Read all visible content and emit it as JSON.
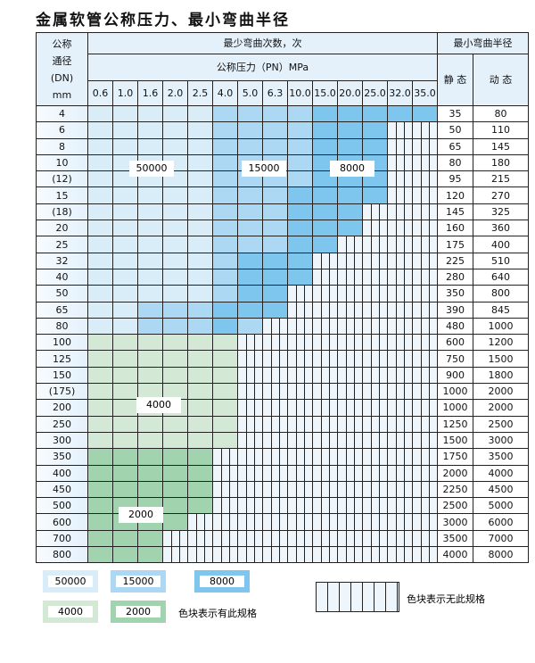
{
  "title": "金属软管公称压力、最小弯曲半径",
  "header": {
    "dn_label": [
      "公称",
      "通径",
      "(DN)",
      "mm"
    ],
    "cycles_label": "最少弯曲次数，次",
    "pressure_label": "公称压力（PN）MPa",
    "radius_label": "最小弯曲半径",
    "static_label": "静 态",
    "dynamic_label": "动 态"
  },
  "pressures": [
    "0.6",
    "1.0",
    "1.6",
    "2.0",
    "2.5",
    "4.0",
    "5.0",
    "6.3",
    "10.0",
    "15.0",
    "20.0",
    "25.0",
    "32.0",
    "35.0"
  ],
  "colors": {
    "1": "#d9edf9",
    "2": "#acd8f3",
    "3": "#7fc6ee",
    "g": "#d3e9d6",
    "G": "#a0d3ae",
    "none": "#eef6fc"
  },
  "rows": [
    {
      "dn": "4",
      "static": "35",
      "dynamic": "80",
      "cells": "11111222233333"
    },
    {
      "dn": "6",
      "static": "50",
      "dynamic": "110",
      "cells": "111112222333--"
    },
    {
      "dn": "8",
      "static": "65",
      "dynamic": "145",
      "cells": "111112222333--"
    },
    {
      "dn": "10",
      "static": "80",
      "dynamic": "180",
      "cells": "111112222333--"
    },
    {
      "dn": "(12)",
      "static": "95",
      "dynamic": "215",
      "cells": "111112222333--"
    },
    {
      "dn": "15",
      "static": "120",
      "dynamic": "270",
      "cells": "111112223333--"
    },
    {
      "dn": "(18)",
      "static": "145",
      "dynamic": "325",
      "cells": "11111222333---"
    },
    {
      "dn": "20",
      "static": "160",
      "dynamic": "360",
      "cells": "11111222333---"
    },
    {
      "dn": "25",
      "static": "175",
      "dynamic": "400",
      "cells": "1111122233----"
    },
    {
      "dn": "32",
      "static": "225",
      "dynamic": "510",
      "cells": "111112333-----"
    },
    {
      "dn": "40",
      "static": "280",
      "dynamic": "640",
      "cells": "111112333-----"
    },
    {
      "dn": "50",
      "static": "350",
      "dynamic": "800",
      "cells": "11111233------"
    },
    {
      "dn": "65",
      "static": "390",
      "dynamic": "845",
      "cells": "11222333------"
    },
    {
      "dn": "80",
      "static": "480",
      "dynamic": "1000",
      "cells": "1122232-------"
    },
    {
      "dn": "100",
      "static": "600",
      "dynamic": "1200",
      "cells": "gggggg--------"
    },
    {
      "dn": "125",
      "static": "750",
      "dynamic": "1500",
      "cells": "gggggg--------"
    },
    {
      "dn": "150",
      "static": "900",
      "dynamic": "1800",
      "cells": "gggggg--------"
    },
    {
      "dn": "(175)",
      "static": "1000",
      "dynamic": "2000",
      "cells": "gggggg--------"
    },
    {
      "dn": "200",
      "static": "1000",
      "dynamic": "2000",
      "cells": "gggggg--------"
    },
    {
      "dn": "250",
      "static": "1250",
      "dynamic": "2500",
      "cells": "gggggg--------"
    },
    {
      "dn": "300",
      "static": "1500",
      "dynamic": "3000",
      "cells": "gggggg--------"
    },
    {
      "dn": "350",
      "static": "1750",
      "dynamic": "3500",
      "cells": "GGGGG---------"
    },
    {
      "dn": "400",
      "static": "2000",
      "dynamic": "4000",
      "cells": "GGGGG---------"
    },
    {
      "dn": "450",
      "static": "2250",
      "dynamic": "4500",
      "cells": "GGGGG---------"
    },
    {
      "dn": "500",
      "static": "2500",
      "dynamic": "5000",
      "cells": "GGGGG---------"
    },
    {
      "dn": "600",
      "static": "3000",
      "dynamic": "6000",
      "cells": "GGGG----------"
    },
    {
      "dn": "700",
      "static": "3500",
      "dynamic": "7000",
      "cells": "GGG-----------"
    },
    {
      "dn": "800",
      "static": "4000",
      "dynamic": "8000",
      "cells": "GGG-----------"
    }
  ],
  "region_labels": {
    "c50000": "50000",
    "c15000": "15000",
    "c8000": "8000",
    "c4000": "4000",
    "c2000": "2000"
  },
  "legend": {
    "items": [
      "50000",
      "15000",
      "8000",
      "4000",
      "2000"
    ],
    "has_spec": "色块表示有此规格",
    "no_spec": "色块表示无此规格"
  }
}
